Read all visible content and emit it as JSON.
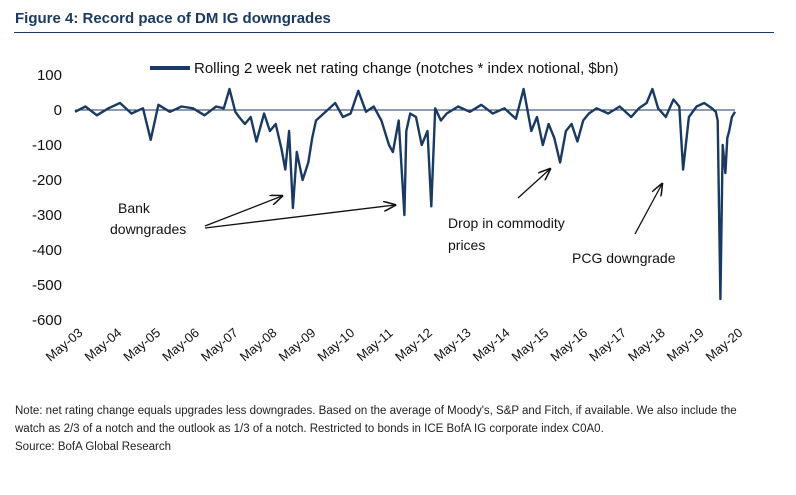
{
  "figure": {
    "title": "Figure 4: Record pace of DM IG downgrades",
    "note_lines": [
      "Note: net rating change equals upgrades less downgrades. Based on the average of Moody's, S&P and Fitch, if available. We also include the",
      "watch as 2/3 of a notch and the outlook as 1/3 of a notch. Restricted to bonds in ICE BofA IG corporate index C0A0.",
      "Source: BofA Global Research"
    ]
  },
  "chart_data": {
    "type": "line",
    "title": "",
    "xlabel": "",
    "ylabel": "",
    "ylim": [
      -600,
      100
    ],
    "y_ticks": [
      "100",
      "0",
      "-100",
      "-200",
      "-300",
      "-400",
      "-500",
      "-600"
    ],
    "x_ticks": [
      "May-03",
      "May-04",
      "May-05",
      "May-06",
      "May-07",
      "May-08",
      "May-09",
      "May-10",
      "May-11",
      "May-12",
      "May-13",
      "May-14",
      "May-15",
      "May-16",
      "May-17",
      "May-18",
      "May-19",
      "May-20"
    ],
    "legend_position": "top",
    "grid": false,
    "series_color": "#1b3a63",
    "series": [
      {
        "name": "Rolling 2 week net rating change (notches * index notional, $bn)",
        "x": [
          2003.33,
          2003.6,
          2003.9,
          2004.2,
          2004.5,
          2004.8,
          2005.1,
          2005.3,
          2005.5,
          2005.8,
          2006.1,
          2006.4,
          2006.7,
          2007.0,
          2007.2,
          2007.35,
          2007.5,
          2007.6,
          2007.75,
          2007.9,
          2008.05,
          2008.25,
          2008.4,
          2008.55,
          2008.7,
          2008.8,
          2008.9,
          2009.0,
          2009.1,
          2009.25,
          2009.4,
          2009.5,
          2009.6,
          2009.8,
          2010.1,
          2010.3,
          2010.5,
          2010.7,
          2010.9,
          2011.1,
          2011.3,
          2011.5,
          2011.6,
          2011.75,
          2011.9,
          2011.95,
          2012.05,
          2012.2,
          2012.35,
          2012.5,
          2012.6,
          2012.7,
          2012.85,
          2013.0,
          2013.3,
          2013.6,
          2013.9,
          2014.2,
          2014.5,
          2014.8,
          2015.0,
          2015.2,
          2015.35,
          2015.5,
          2015.65,
          2015.8,
          2015.95,
          2016.1,
          2016.25,
          2016.4,
          2016.55,
          2016.7,
          2016.9,
          2017.2,
          2017.5,
          2017.8,
          2018.0,
          2018.2,
          2018.35,
          2018.5,
          2018.7,
          2018.9,
          2019.05,
          2019.15,
          2019.3,
          2019.5,
          2019.7,
          2019.9,
          2020.0,
          2020.05,
          2020.12,
          2020.18,
          2020.25,
          2020.3,
          2020.35,
          2020.42,
          2020.5
        ],
        "y": [
          -5,
          10,
          -15,
          5,
          20,
          -10,
          5,
          -85,
          15,
          -5,
          10,
          5,
          -15,
          10,
          5,
          60,
          -5,
          -20,
          -40,
          -20,
          -90,
          -10,
          -60,
          -40,
          -110,
          -170,
          -60,
          -280,
          -120,
          -200,
          -150,
          -80,
          -30,
          -10,
          20,
          -20,
          -10,
          55,
          -5,
          10,
          -30,
          -100,
          -120,
          -30,
          -300,
          -60,
          -10,
          -20,
          -100,
          -60,
          -275,
          5,
          -30,
          -10,
          10,
          -5,
          15,
          -10,
          5,
          -25,
          60,
          -60,
          -20,
          -100,
          -40,
          -80,
          -150,
          -60,
          -40,
          -90,
          -30,
          -10,
          5,
          -10,
          10,
          -20,
          5,
          20,
          60,
          5,
          -20,
          30,
          10,
          -170,
          -20,
          10,
          20,
          5,
          -5,
          -30,
          -540,
          -100,
          -180,
          -80,
          -60,
          -20,
          -5
        ]
      }
    ],
    "annotations": [
      "Bank",
      "downgrades",
      "Drop in commodity",
      "prices",
      "PCG downgrade"
    ]
  }
}
